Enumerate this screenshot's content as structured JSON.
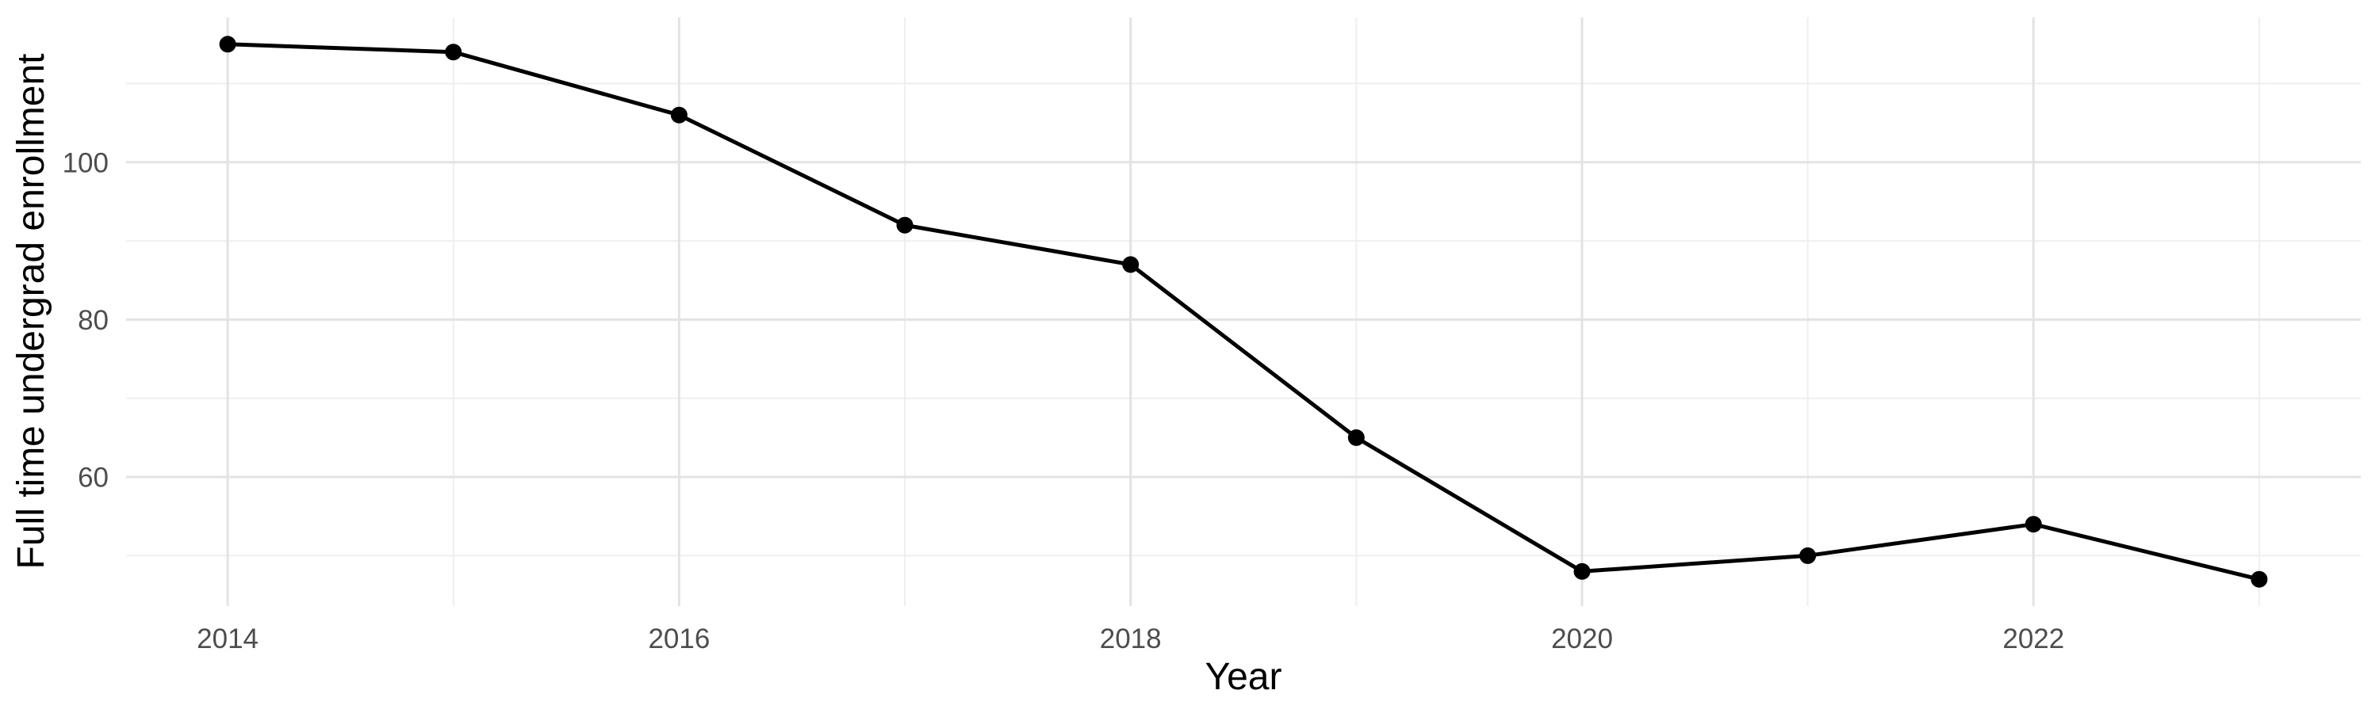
{
  "chart_data": {
    "type": "line",
    "title": "",
    "xlabel": "Year",
    "ylabel": "Full time undergrad enrollment",
    "series": [
      {
        "name": "Full time undergrad enrollment",
        "x": [
          2014,
          2015,
          2016,
          2017,
          2018,
          2019,
          2020,
          2021,
          2022,
          2023
        ],
        "values": [
          115,
          114,
          106,
          92,
          87,
          65,
          48,
          50,
          54,
          47
        ]
      }
    ],
    "x_major_ticks": [
      2014,
      2016,
      2018,
      2020,
      2022
    ],
    "x_minor_ticks": [
      2015,
      2017,
      2019,
      2021,
      2023
    ],
    "x_tick_labels": [
      "2014",
      "2016",
      "2018",
      "2020",
      "2022"
    ],
    "y_major_ticks": [
      60,
      80,
      100
    ],
    "y_minor_ticks": [
      50,
      70,
      90,
      110
    ],
    "y_tick_labels": [
      "60",
      "80",
      "100"
    ],
    "xlim": [
      2013.55,
      2023.45
    ],
    "ylim": [
      43.6,
      118.4
    ],
    "grid": true,
    "legend": false,
    "theme": "minimal-white",
    "colors": {
      "line": "#000000",
      "point": "#000000",
      "grid_major": "#e3e3e3",
      "grid_minor": "#efefef",
      "tick_label": "#4d4d4d",
      "axis_title": "#000000",
      "background": "#ffffff"
    }
  }
}
